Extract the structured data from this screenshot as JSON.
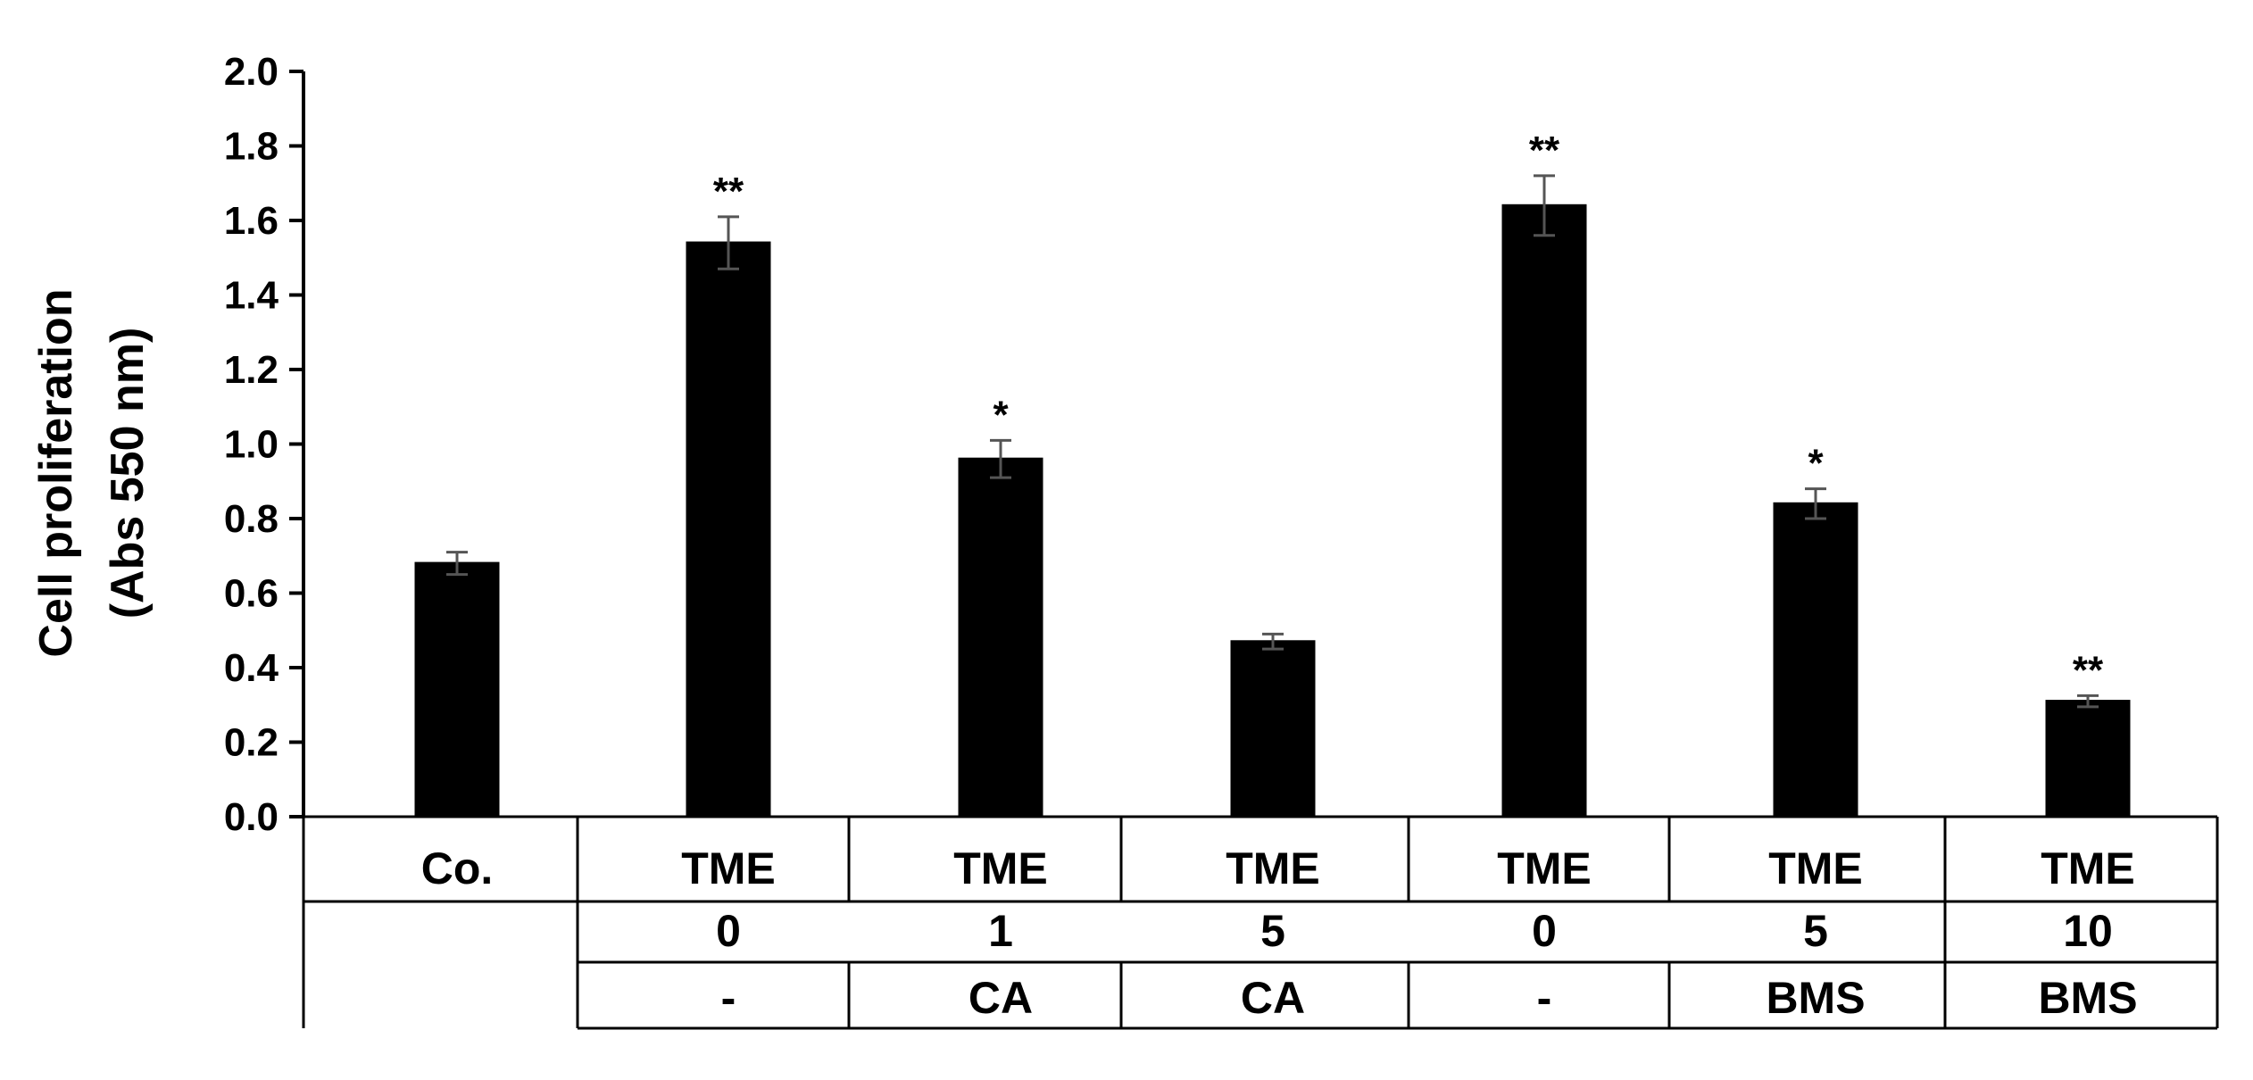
{
  "chart_data": {
    "type": "bar",
    "title": "",
    "ylabel_line1": "Cell proliferation",
    "ylabel_line2": "(Abs 550 nm)",
    "xlabel": "",
    "ylim": [
      0,
      2.0
    ],
    "yticks": [
      "0.0",
      "0.2",
      "0.4",
      "0.6",
      "0.8",
      "1.0",
      "1.2",
      "1.4",
      "1.6",
      "1.8",
      "2.0"
    ],
    "grid": false,
    "bar_color": "#000000",
    "categories": [
      "Co.",
      "TME 0 -",
      "TME 1 CA",
      "TME 5 CA",
      "TME 0 -",
      "TME 5 BMS",
      "TME 10 BMS"
    ],
    "values": [
      0.68,
      1.54,
      0.96,
      0.47,
      1.64,
      0.84,
      0.31
    ],
    "errors": [
      0.03,
      0.07,
      0.05,
      0.02,
      0.08,
      0.04,
      0.015
    ],
    "significance": [
      "",
      "**",
      "*",
      "",
      "**",
      "*",
      "**"
    ],
    "condition_table": {
      "row1": [
        "Co.",
        "TME",
        "TME",
        "TME",
        "TME",
        "TME",
        "TME"
      ],
      "row2": [
        "",
        "0",
        "1",
        "5",
        "0",
        "5",
        "10"
      ],
      "row3": [
        "",
        "-",
        "CA",
        "CA",
        "-",
        "BMS",
        "BMS"
      ]
    }
  }
}
